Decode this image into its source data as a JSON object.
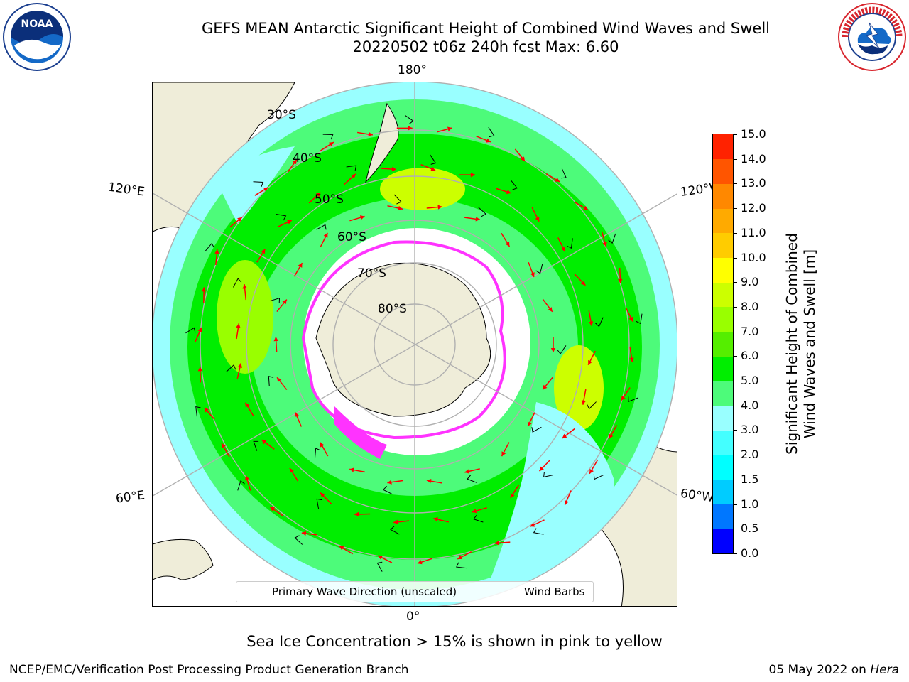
{
  "header": {
    "title_line1": "GEFS MEAN Antarctic Significant Height of Combined Wind Waves and Swell",
    "title_line2": "20220502 t06z 240h fcst   Max: 6.60"
  },
  "logos": {
    "left": "noaa-logo",
    "right": "nws-logo"
  },
  "map": {
    "longitude_labels": {
      "top": "180°",
      "bottom": "0°",
      "upper_left": "120°E",
      "upper_right": "120°W",
      "lower_left": "60°E",
      "lower_right": "60°W"
    },
    "latitude_labels": [
      "30°S",
      "40°S",
      "50°S",
      "60°S",
      "70°S",
      "80°S"
    ],
    "colors": {
      "land": "#efedd9",
      "ice_shelf": "#ffffff",
      "grid": "#b0b0b0",
      "coast": "#000000",
      "wave_arrow": "#ff0000",
      "sea_ice": "#ff33ff"
    }
  },
  "legend": {
    "items": [
      {
        "label": "Primary Wave Direction (unscaled)",
        "color": "#ff0000"
      },
      {
        "label": "Wind Barbs",
        "color": "#000000"
      }
    ]
  },
  "colorbar": {
    "label_line1": "Significant Height of Combined",
    "label_line2": "Wind Waves and Swell [m]",
    "ticks": [
      "0.0",
      "0.5",
      "1.0",
      "1.5",
      "2.0",
      "3.0",
      "4.0",
      "5.0",
      "6.0",
      "7.0",
      "8.0",
      "9.0",
      "10.0",
      "11.0",
      "12.0",
      "13.0",
      "14.0",
      "15.0"
    ],
    "colors": [
      "#0000ff",
      "#0077ff",
      "#00ccff",
      "#00ffff",
      "#44ffff",
      "#99ffff",
      "#4dfb7a",
      "#00ee00",
      "#55ee00",
      "#99ff00",
      "#ccff00",
      "#ffff00",
      "#ffcc00",
      "#ffaa00",
      "#ff8800",
      "#ff5500",
      "#ff2200"
    ]
  },
  "notes": {
    "sea_ice": "Sea Ice Concentration > 15% is shown in pink to yellow"
  },
  "footer": {
    "left": "NCEP/EMC/Verification Post Processing Product Generation Branch",
    "date": "05 May 2022 on ",
    "host": "Hera"
  }
}
